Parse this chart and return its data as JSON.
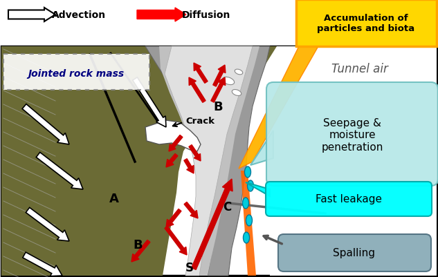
{
  "fig_width": 6.33,
  "fig_height": 4.02,
  "dpi": 100,
  "bg_color": "#ffffff",
  "dark_olive": "#6B6B35",
  "rock_gray": "#A0A0A0",
  "tunnel_gray": "#B0B0B0",
  "shotcrete_light": "#D8D8D8",
  "tunnel_air_white": "#FFFFFF",
  "yellow_fill": "#FFD700",
  "orange_fill": "#FFA500",
  "cyan_light": "#B0E8E8",
  "cyan_bright": "#00FFFF",
  "spalling_gray1": "#8AA0A8",
  "spalling_gray2": "#607080",
  "red_arrow": "#CC0000",
  "advection_text": "Advection",
  "diffusion_text": "Diffusion",
  "accumulation_text": "Accumulation of\nparticles and biota",
  "tunnel_air_text": "Tunnel air",
  "jointed_rock_text": "Jointed rock mass",
  "crack_text": "Crack",
  "seepage_text": "Seepage &\nmoisture\npenetration",
  "fast_leakage_text": "Fast leakage",
  "spalling_text": "Spalling",
  "label_A": "A",
  "label_B1": "B",
  "label_B2": "B",
  "label_C": "C",
  "label_S": "S"
}
